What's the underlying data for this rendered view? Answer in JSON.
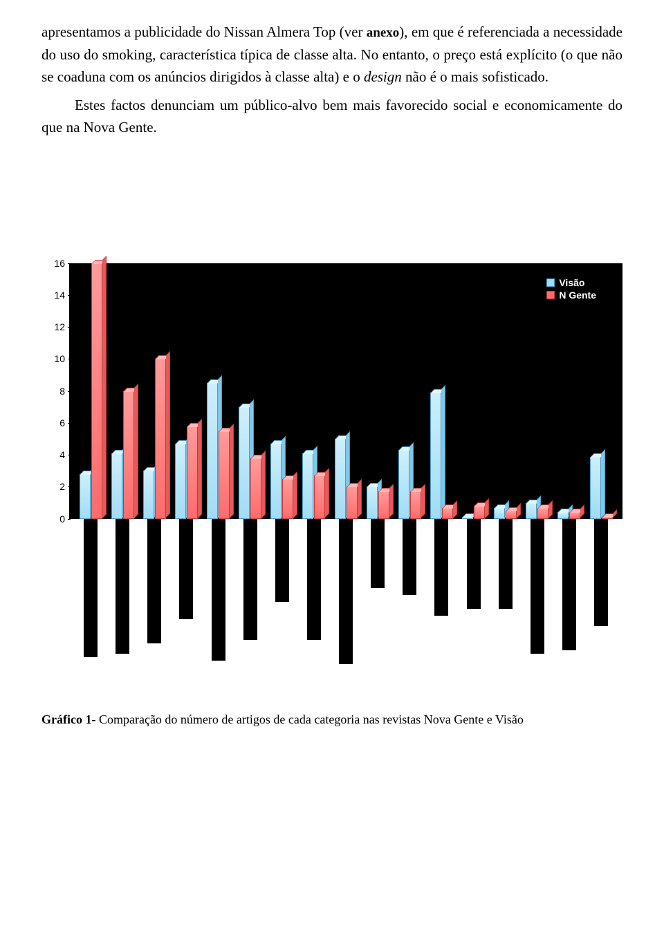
{
  "paragraphs": {
    "p1_part1": "apresentamos a publicidade do Nissan Almera Top (ver ",
    "p1_anexo": "anexo",
    "p1_part2": "), em que é referenciada a necessidade do uso do smoking, característica típica de classe alta. No entanto, o preço está explícito (o que não se coaduna com os anúncios dirigidos à classe alta) e o ",
    "p1_design": "design",
    "p1_part3": " não é o mais sofisticado.",
    "p2": "Estes factos denunciam um público-alvo bem mais favorecido social e economicamente do que na Nova Gente."
  },
  "chart": {
    "type": "bar",
    "background_color": "#000000",
    "legend": {
      "series1": "Visão",
      "series2": "N Gente"
    },
    "y_ticks": [
      0,
      2,
      4,
      6,
      8,
      10,
      12,
      14,
      16
    ],
    "y_max": 16,
    "colors": {
      "visao_fill": "#a1dcf6",
      "visao_border": "#4a9fc7",
      "ngente_fill": "#ff6b6b",
      "ngente_border": "#c43a3a"
    },
    "data": [
      {
        "visao": 2.8,
        "ngente": 16.0,
        "xlabel_h": 200
      },
      {
        "visao": 4.1,
        "ngente": 8.0,
        "xlabel_h": 195
      },
      {
        "visao": 3.0,
        "ngente": 10.0,
        "xlabel_h": 180
      },
      {
        "visao": 4.7,
        "ngente": 5.8,
        "xlabel_h": 145
      },
      {
        "visao": 8.5,
        "ngente": 5.5,
        "xlabel_h": 205
      },
      {
        "visao": 7.0,
        "ngente": 3.8,
        "xlabel_h": 175
      },
      {
        "visao": 4.7,
        "ngente": 2.5,
        "xlabel_h": 120
      },
      {
        "visao": 4.1,
        "ngente": 2.7,
        "xlabel_h": 175
      },
      {
        "visao": 5.0,
        "ngente": 2.0,
        "xlabel_h": 210
      },
      {
        "visao": 2.0,
        "ngente": 1.7,
        "xlabel_h": 100
      },
      {
        "visao": 4.3,
        "ngente": 1.7,
        "xlabel_h": 110
      },
      {
        "visao": 7.9,
        "ngente": 0.7,
        "xlabel_h": 140
      },
      {
        "visao": 0.1,
        "ngente": 0.8,
        "xlabel_h": 130
      },
      {
        "visao": 0.7,
        "ngente": 0.5,
        "xlabel_h": 130
      },
      {
        "visao": 1.0,
        "ngente": 0.7,
        "xlabel_h": 195
      },
      {
        "visao": 0.4,
        "ngente": 0.4,
        "xlabel_h": 190
      },
      {
        "visao": 3.9,
        "ngente": 0.1,
        "xlabel_h": 155
      }
    ]
  },
  "caption": {
    "bold": "Gráfico 1- ",
    "rest": "Comparação do número de artigos de cada categoria nas revistas Nova Gente e Visão"
  }
}
